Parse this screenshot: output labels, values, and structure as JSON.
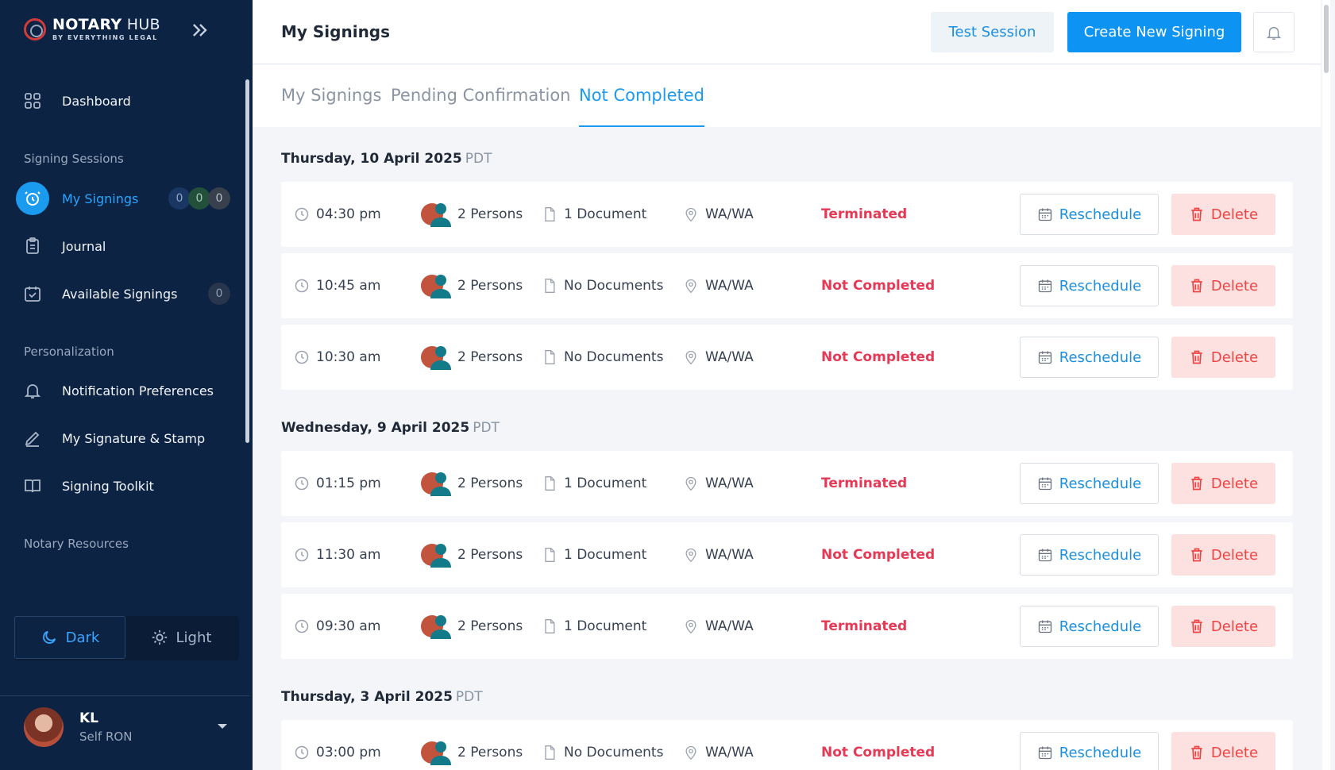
{
  "brand": {
    "title_bold": "NOTARY",
    "title_rest": " HUB",
    "subtitle": "BY EVERYTHING LEGAL"
  },
  "sidebar": {
    "dashboard": "Dashboard",
    "section_signing": "Signing Sessions",
    "my_signings": "My Signings",
    "my_signings_counts": [
      "0",
      "0",
      "0"
    ],
    "journal": "Journal",
    "available_signings": "Available Signings",
    "available_count": "0",
    "section_personalization": "Personalization",
    "notification_prefs": "Notification Preferences",
    "signature_stamp": "My Signature & Stamp",
    "signing_toolkit": "Signing Toolkit",
    "section_resources": "Notary Resources",
    "theme_dark": "Dark",
    "theme_light": "Light"
  },
  "profile": {
    "name": "KL",
    "role": "Self RON"
  },
  "header": {
    "title": "My Signings",
    "test_session": "Test Session",
    "create_new": "Create New Signing"
  },
  "tabs": [
    "My Signings",
    "Pending Confirmation",
    "Not Completed"
  ],
  "actions": {
    "reschedule": "Reschedule",
    "delete": "Delete"
  },
  "days": [
    {
      "date": "Thursday, 10 April 2025",
      "tz": "PDT",
      "rows": [
        {
          "time": "04:30 pm",
          "persons": "2 Persons",
          "docs": "1 Document",
          "loc": "WA/WA",
          "status": "Terminated"
        },
        {
          "time": "10:45 am",
          "persons": "2 Persons",
          "docs": "No Documents",
          "loc": "WA/WA",
          "status": "Not Completed"
        },
        {
          "time": "10:30 am",
          "persons": "2 Persons",
          "docs": "No Documents",
          "loc": "WA/WA",
          "status": "Not Completed"
        }
      ]
    },
    {
      "date": "Wednesday, 9 April 2025",
      "tz": "PDT",
      "rows": [
        {
          "time": "01:15 pm",
          "persons": "2 Persons",
          "docs": "1 Document",
          "loc": "WA/WA",
          "status": "Terminated"
        },
        {
          "time": "11:30 am",
          "persons": "2 Persons",
          "docs": "1 Document",
          "loc": "WA/WA",
          "status": "Not Completed"
        },
        {
          "time": "09:30 am",
          "persons": "2 Persons",
          "docs": "1 Document",
          "loc": "WA/WA",
          "status": "Terminated"
        }
      ]
    },
    {
      "date": "Thursday, 3 April 2025",
      "tz": "PDT",
      "rows": [
        {
          "time": "03:00 pm",
          "persons": "2 Persons",
          "docs": "No Documents",
          "loc": "WA/WA",
          "status": "Not Completed"
        }
      ]
    }
  ]
}
